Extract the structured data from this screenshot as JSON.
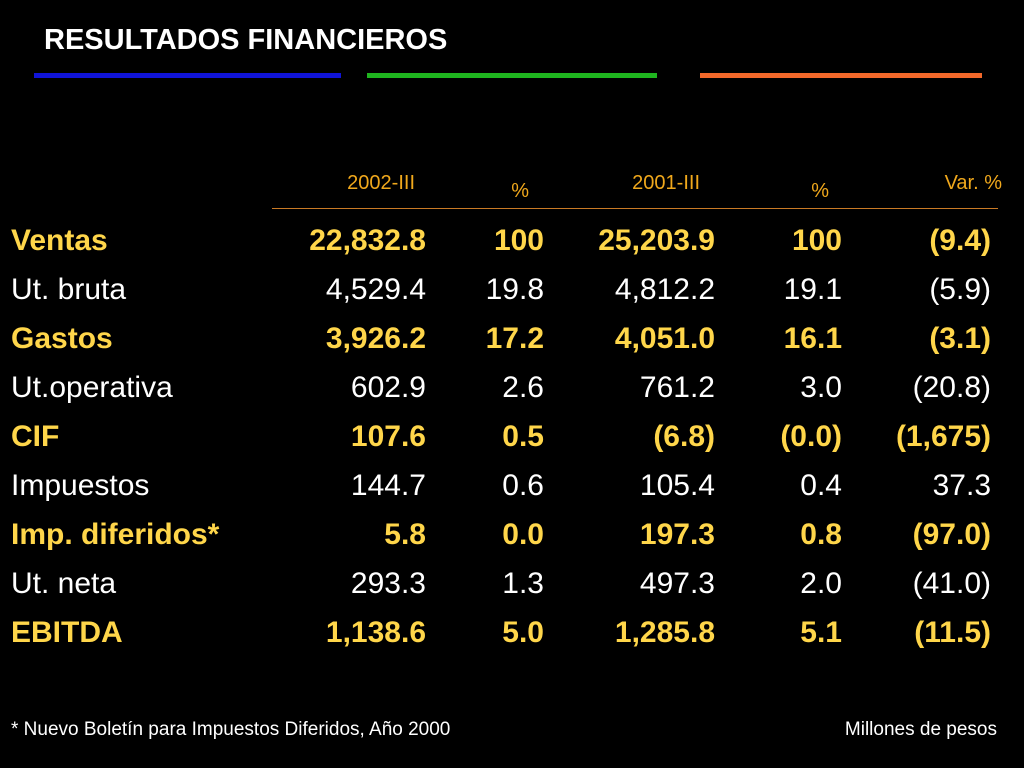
{
  "title": "RESULTADOS FINANCIEROS",
  "accent_colors": {
    "blue": "#1014d8",
    "green": "#1fb51f",
    "orange": "#f2682a",
    "header": "#f0a81c",
    "highlight": "#ffd64a"
  },
  "headers": {
    "col1": "2002-III",
    "col2": "%",
    "col3": "2001-III",
    "col4": "%",
    "col5": "Var. %"
  },
  "rows": [
    {
      "label": "Ventas",
      "v1": "22,832.8",
      "p1": "100",
      "v2": "25,203.9",
      "p2": "100",
      "var": "(9.4)"
    },
    {
      "label": "Ut. bruta",
      "v1": "4,529.4",
      "p1": "19.8",
      "v2": "4,812.2",
      "p2": "19.1",
      "var": "(5.9)"
    },
    {
      "label": "Gastos",
      "v1": "3,926.2",
      "p1": "17.2",
      "v2": "4,051.0",
      "p2": "16.1",
      "var": "(3.1)"
    },
    {
      "label": "Ut.operativa",
      "v1": "602.9",
      "p1": "2.6",
      "v2": "761.2",
      "p2": "3.0",
      "var": "(20.8)"
    },
    {
      "label": "CIF",
      "v1": "107.6",
      "p1": "0.5",
      "v2": "(6.8)",
      "p2": "(0.0)",
      "var": "(1,675)"
    },
    {
      "label": "Impuestos",
      "v1": "144.7",
      "p1": "0.6",
      "v2": "105.4",
      "p2": "0.4",
      "var": "37.3"
    },
    {
      "label": "Imp. diferidos*",
      "v1": "5.8",
      "p1": "0.0",
      "v2": "197.3",
      "p2": "0.8",
      "var": "(97.0)"
    },
    {
      "label": "Ut. neta",
      "v1": "293.3",
      "p1": "1.3",
      "v2": "497.3",
      "p2": "2.0",
      "var": "(41.0)"
    },
    {
      "label": "EBITDA",
      "v1": "1,138.6",
      "p1": "5.0",
      "v2": "1,285.8",
      "p2": "5.1",
      "var": "(11.5)"
    }
  ],
  "footnote": "* Nuevo Boletín para Impuestos Diferidos, Año 2000",
  "units": "Millones de pesos"
}
